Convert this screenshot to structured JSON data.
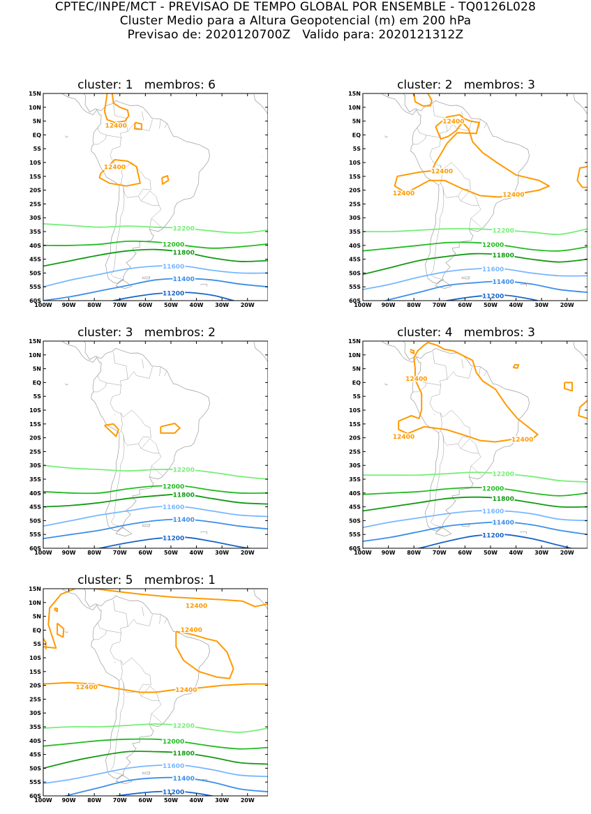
{
  "header": {
    "line1": "CPTEC/INPE/MCT - PREVISAO DE TEMPO GLOBAL POR ENSEMBLE - TQ0126L028",
    "line2": "Cluster Medio para a Altura Geopotencial (m) em 200 hPa",
    "line3": "Previsao de: 2020120700Z   Valido para: 2020121312Z"
  },
  "axes": {
    "lat_ticks": [
      "15N",
      "10N",
      "5N",
      "EQ",
      "5S",
      "10S",
      "15S",
      "20S",
      "25S",
      "30S",
      "35S",
      "40S",
      "45S",
      "50S",
      "55S",
      "60S"
    ],
    "lon_ticks": [
      "100W",
      "90W",
      "80W",
      "70W",
      "60W",
      "50W",
      "40W",
      "30W",
      "20W"
    ]
  },
  "colors": {
    "c12400": "#ff9900",
    "c12200": "#77ee77",
    "c12000": "#22bb22",
    "c11800": "#119911",
    "c11600": "#77b7ff",
    "c11400": "#3b8ee8",
    "c11200": "#1763c8",
    "coast": "#999999"
  },
  "clusters": [
    {
      "title": "cluster: 1   membros: 6",
      "contours": [
        {
          "label": "12200",
          "color": "c12200",
          "lats": [
            -32.2,
            -32.8,
            -33.4,
            -33.0,
            -33.4,
            -33.8,
            -34.8,
            -35.5,
            -34.5
          ]
        },
        {
          "label": "12000",
          "color": "c12000",
          "lats": [
            -40.0,
            -40.0,
            -39.6,
            -38.5,
            -38.8,
            -40.0,
            -41.0,
            -40.5,
            -39.5
          ]
        },
        {
          "label": "11800",
          "color": "c11800",
          "lats": [
            -47.5,
            -45.5,
            -43.5,
            -42.0,
            -41.5,
            -42.5,
            -44.5,
            -45.8,
            -45.5
          ]
        },
        {
          "label": "11600",
          "color": "c11600",
          "lats": [
            -55.0,
            -52.5,
            -50.5,
            -48.5,
            -47.5,
            -47.5,
            -49.0,
            -50.0,
            -50.0
          ]
        },
        {
          "label": "11400",
          "color": "c11400",
          "lats": [
            -60.0,
            -58.5,
            -56.5,
            -54.5,
            -52.5,
            -52.0,
            -52.5,
            -54.0,
            -55.0
          ]
        },
        {
          "label": "11200",
          "color": "c11200",
          "lats": [
            -62.0,
            -62.0,
            -61.0,
            -59.0,
            -57.5,
            -57.0,
            -58.0,
            -60.5,
            -62.0
          ]
        }
      ]
    },
    {
      "title": "cluster: 2   membros: 3",
      "contours": [
        {
          "label": "12200",
          "color": "c12200",
          "lats": [
            -35.0,
            -35.0,
            -34.5,
            -34.0,
            -34.0,
            -34.5,
            -35.2,
            -36.0,
            -34.0
          ]
        },
        {
          "label": "12000",
          "color": "c12000",
          "lats": [
            -42.0,
            -41.0,
            -40.0,
            -39.0,
            -39.0,
            -40.0,
            -41.5,
            -42.0,
            -40.5
          ]
        },
        {
          "label": "11800",
          "color": "c11800",
          "lats": [
            -50.5,
            -48.0,
            -45.5,
            -44.0,
            -43.0,
            -43.5,
            -45.0,
            -46.0,
            -45.0
          ]
        },
        {
          "label": "11600",
          "color": "c11600",
          "lats": [
            -56.0,
            -54.0,
            -51.5,
            -49.5,
            -48.5,
            -48.5,
            -50.0,
            -51.0,
            -51.0
          ]
        },
        {
          "label": "11400",
          "color": "c11400",
          "lats": [
            -62.0,
            -59.5,
            -57.0,
            -54.5,
            -53.5,
            -53.0,
            -54.0,
            -56.0,
            -57.0
          ]
        },
        {
          "label": "11200",
          "color": "c11200",
          "lats": [
            -63.0,
            -63.0,
            -62.0,
            -60.0,
            -58.5,
            -58.0,
            -59.5,
            -62.0,
            -63.0
          ]
        }
      ]
    },
    {
      "title": "cluster: 3   membros: 2",
      "contours": [
        {
          "label": "12200",
          "color": "c12200",
          "lats": [
            -30.0,
            -31.0,
            -31.5,
            -32.0,
            -31.5,
            -31.5,
            -32.5,
            -34.0,
            -35.0
          ]
        },
        {
          "label": "12000",
          "color": "c12000",
          "lats": [
            -39.5,
            -40.0,
            -40.0,
            -38.5,
            -37.5,
            -37.5,
            -39.0,
            -40.0,
            -40.0
          ]
        },
        {
          "label": "11800",
          "color": "c11800",
          "lats": [
            -45.0,
            -44.5,
            -43.5,
            -42.0,
            -41.0,
            -40.5,
            -42.0,
            -43.5,
            -44.0
          ]
        },
        {
          "label": "11600",
          "color": "c11600",
          "lats": [
            -52.0,
            -50.0,
            -48.0,
            -46.5,
            -45.0,
            -45.0,
            -46.5,
            -48.0,
            -48.5
          ]
        },
        {
          "label": "11400",
          "color": "c11400",
          "lats": [
            -56.5,
            -55.0,
            -53.5,
            -51.5,
            -50.0,
            -49.5,
            -50.5,
            -52.0,
            -53.0
          ]
        },
        {
          "label": "11200",
          "color": "c11200",
          "lats": [
            -63.0,
            -62.0,
            -60.0,
            -58.0,
            -56.5,
            -56.0,
            -57.5,
            -59.5,
            -61.0
          ]
        }
      ]
    },
    {
      "title": "cluster: 4   membros: 3",
      "contours": [
        {
          "label": "12200",
          "color": "c12200",
          "lats": [
            -33.5,
            -33.5,
            -33.5,
            -33.0,
            -32.5,
            -33.0,
            -34.0,
            -35.5,
            -36.0
          ]
        },
        {
          "label": "12000",
          "color": "c12000",
          "lats": [
            -40.5,
            -40.0,
            -39.5,
            -38.5,
            -38.0,
            -38.5,
            -40.0,
            -41.0,
            -40.0
          ]
        },
        {
          "label": "11800",
          "color": "c11800",
          "lats": [
            -46.5,
            -45.0,
            -43.5,
            -42.0,
            -41.5,
            -42.0,
            -43.5,
            -45.0,
            -45.0
          ]
        },
        {
          "label": "11600",
          "color": "c11600",
          "lats": [
            -52.5,
            -50.5,
            -49.0,
            -47.5,
            -46.5,
            -46.5,
            -47.5,
            -49.5,
            -50.0
          ]
        },
        {
          "label": "11400",
          "color": "c11400",
          "lats": [
            -57.5,
            -56.0,
            -54.0,
            -52.0,
            -51.0,
            -50.5,
            -51.5,
            -53.5,
            -55.0
          ]
        },
        {
          "label": "11200",
          "color": "c11200",
          "lats": [
            -63.0,
            -62.0,
            -60.0,
            -57.5,
            -55.5,
            -55.0,
            -56.5,
            -59.0,
            -61.5
          ]
        }
      ]
    },
    {
      "title": "cluster: 5   membros: 1",
      "contours": [
        {
          "label": "12200",
          "color": "c12200",
          "lats": [
            -35.5,
            -35.0,
            -35.0,
            -34.5,
            -34.0,
            -34.5,
            -36.0,
            -37.0,
            -35.5
          ]
        },
        {
          "label": "12000",
          "color": "c12000",
          "lats": [
            -42.0,
            -41.0,
            -40.0,
            -39.5,
            -39.5,
            -40.5,
            -42.0,
            -43.0,
            -42.5
          ]
        },
        {
          "label": "11800",
          "color": "c11800",
          "lats": [
            -50.0,
            -47.5,
            -45.5,
            -44.0,
            -44.0,
            -44.5,
            -46.0,
            -48.0,
            -48.5
          ]
        },
        {
          "label": "11600",
          "color": "c11600",
          "lats": [
            -55.5,
            -54.0,
            -52.0,
            -50.0,
            -49.0,
            -49.0,
            -50.5,
            -52.5,
            -53.0
          ]
        },
        {
          "label": "11400",
          "color": "c11400",
          "lats": [
            -62.0,
            -59.5,
            -57.0,
            -54.5,
            -53.5,
            -53.5,
            -55.0,
            -57.5,
            -58.5
          ]
        },
        {
          "label": "11200",
          "color": "c11200",
          "lats": [
            -65.0,
            -63.0,
            -61.0,
            -59.5,
            -58.5,
            -58.5,
            -60.0,
            -62.5,
            -64.5
          ]
        }
      ]
    }
  ]
}
